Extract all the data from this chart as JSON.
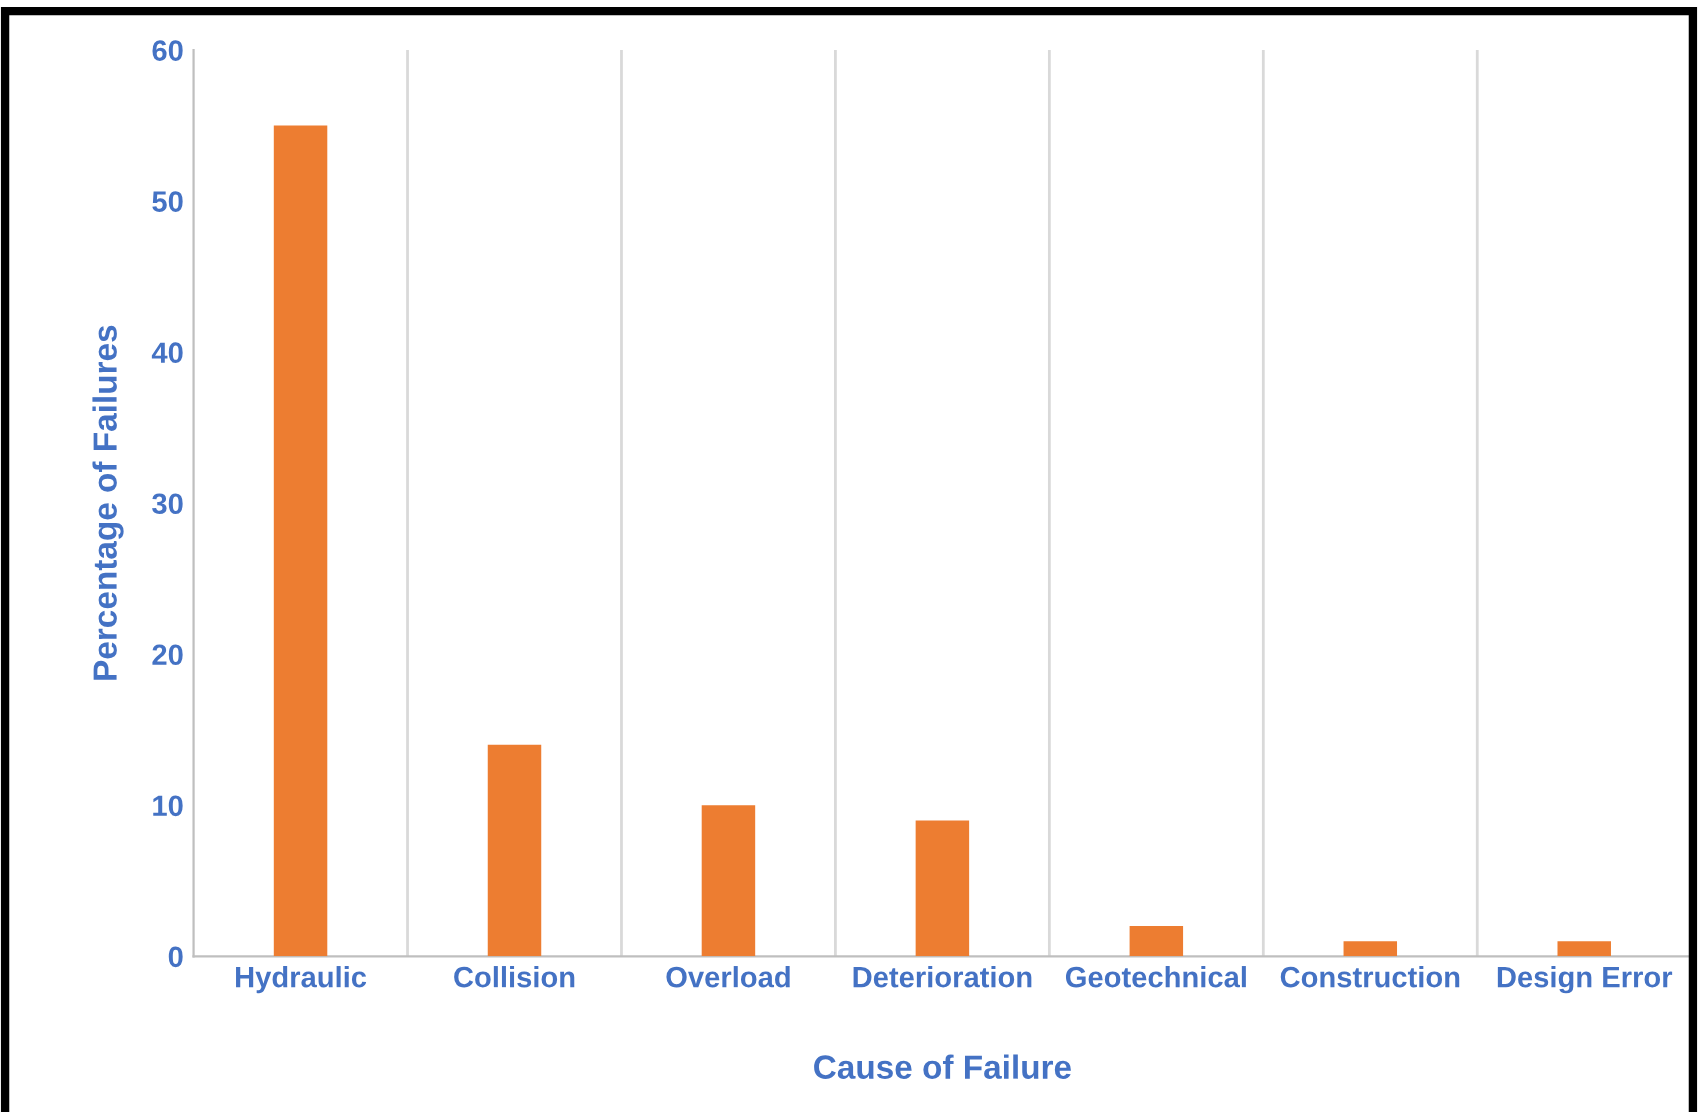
{
  "chart_data": {
    "type": "bar",
    "xlabel": "Cause of Failure",
    "ylabel": "Percentage of Failures",
    "categories": [
      "Hydraulic",
      "Collision",
      "Overload",
      "Deterioration",
      "Geotechnical",
      "Construction",
      "Design Error"
    ],
    "values": [
      55,
      14,
      10,
      9,
      2,
      1,
      1
    ],
    "color": "#ed7d31",
    "ylim": [
      0,
      60
    ],
    "yticks": [
      0,
      10,
      20,
      30,
      40,
      50,
      60
    ],
    "grid": "x"
  }
}
